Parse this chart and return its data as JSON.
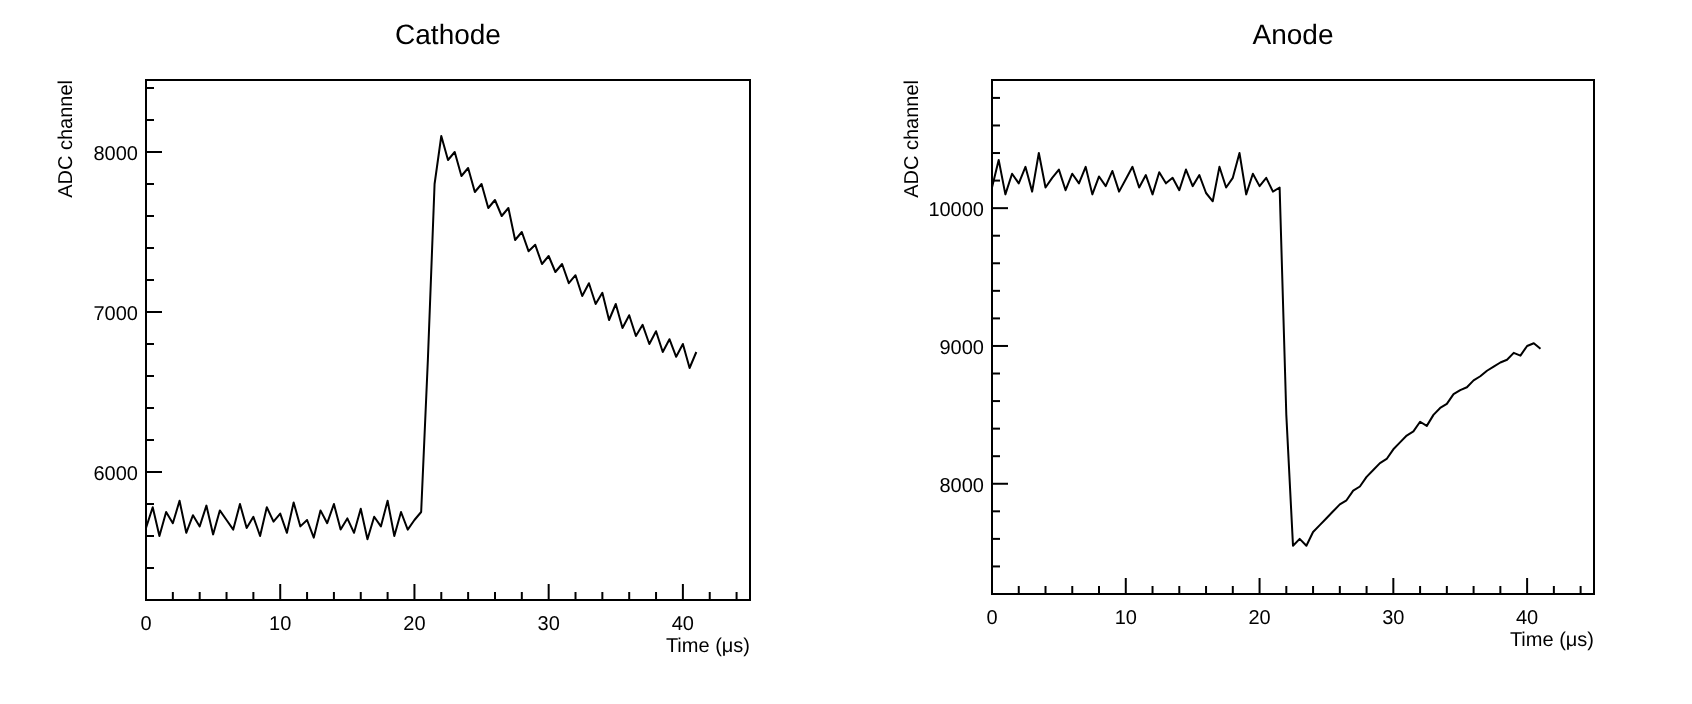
{
  "chart_data": [
    {
      "type": "line",
      "title": "Cathode",
      "xlabel": "Time (μs)",
      "ylabel": "ADC channel",
      "grid": false,
      "marker": "none",
      "line_style": "solid",
      "xlim": [
        0,
        45
      ],
      "ylim": [
        5200,
        8450
      ],
      "xticks": [
        0,
        {
          "value": 2,
          "label": null
        },
        {
          "value": 4,
          "label": null
        },
        {
          "value": 6,
          "label": null
        },
        {
          "value": 8,
          "label": null
        },
        10,
        {
          "value": 12,
          "label": null
        },
        {
          "value": 14,
          "label": null
        },
        {
          "value": 16,
          "label": null
        },
        {
          "value": 18,
          "label": null
        },
        20,
        {
          "value": 22,
          "label": null
        },
        {
          "value": 24,
          "label": null
        },
        {
          "value": 26,
          "label": null
        },
        {
          "value": 28,
          "label": null
        },
        30,
        {
          "value": 32,
          "label": null
        },
        {
          "value": 34,
          "label": null
        },
        {
          "value": 36,
          "label": null
        },
        {
          "value": 38,
          "label": null
        },
        40,
        {
          "value": 42,
          "label": null
        },
        {
          "value": 44,
          "label": null
        }
      ],
      "yticks": [
        {
          "value": 5400,
          "label": null
        },
        {
          "value": 5600,
          "label": null
        },
        {
          "value": 5800,
          "label": null
        },
        6000,
        {
          "value": 6200,
          "label": null
        },
        {
          "value": 6400,
          "label": null
        },
        {
          "value": 6600,
          "label": null
        },
        {
          "value": 6800,
          "label": null
        },
        7000,
        {
          "value": 7200,
          "label": null
        },
        {
          "value": 7400,
          "label": null
        },
        {
          "value": 7600,
          "label": null
        },
        {
          "value": 7800,
          "label": null
        },
        8000,
        {
          "value": 8200,
          "label": null
        },
        {
          "value": 8400,
          "label": null
        }
      ],
      "series": [
        {
          "color": "#000000",
          "x": [
            0,
            0.5,
            1,
            1.5,
            2,
            2.5,
            3,
            3.5,
            4,
            4.5,
            5,
            5.5,
            6,
            6.5,
            7,
            7.5,
            8,
            8.5,
            9,
            9.5,
            10,
            10.5,
            11,
            11.5,
            12,
            12.5,
            13,
            13.5,
            14,
            14.5,
            15,
            15.5,
            16,
            16.5,
            17,
            17.5,
            18,
            18.5,
            19,
            19.5,
            20,
            20.5,
            21,
            21.5,
            22,
            22.5,
            23,
            23.5,
            24,
            24.5,
            25,
            25.5,
            26,
            26.5,
            27,
            27.5,
            28,
            28.5,
            29,
            29.5,
            30,
            30.5,
            31,
            31.5,
            32,
            32.5,
            33,
            33.5,
            34,
            34.5,
            35,
            35.5,
            36,
            36.5,
            37,
            37.5,
            38,
            38.5,
            39,
            39.5,
            40,
            40.5,
            41
          ],
          "values": [
            5650,
            5780,
            5600,
            5750,
            5680,
            5820,
            5620,
            5730,
            5660,
            5790,
            5610,
            5760,
            5700,
            5640,
            5800,
            5650,
            5720,
            5600,
            5780,
            5690,
            5740,
            5620,
            5810,
            5660,
            5700,
            5590,
            5760,
            5680,
            5800,
            5640,
            5710,
            5620,
            5770,
            5580,
            5720,
            5660,
            5820,
            5600,
            5750,
            5640,
            5700,
            5750,
            6700,
            7800,
            8100,
            7950,
            8000,
            7850,
            7900,
            7750,
            7800,
            7650,
            7700,
            7600,
            7650,
            7450,
            7500,
            7380,
            7420,
            7300,
            7350,
            7250,
            7300,
            7180,
            7230,
            7100,
            7180,
            7050,
            7120,
            6950,
            7050,
            6900,
            6980,
            6850,
            6920,
            6800,
            6880,
            6750,
            6830,
            6720,
            6800,
            6650,
            6750
          ]
        }
      ]
    },
    {
      "type": "line",
      "title": "Anode",
      "xlabel": "Time (μs)",
      "ylabel": "ADC channel",
      "grid": false,
      "marker": "none",
      "line_style": "solid",
      "xlim": [
        0,
        45
      ],
      "ylim": [
        7200,
        10930
      ],
      "xticks": [
        0,
        {
          "value": 2,
          "label": null
        },
        {
          "value": 4,
          "label": null
        },
        {
          "value": 6,
          "label": null
        },
        {
          "value": 8,
          "label": null
        },
        10,
        {
          "value": 12,
          "label": null
        },
        {
          "value": 14,
          "label": null
        },
        {
          "value": 16,
          "label": null
        },
        {
          "value": 18,
          "label": null
        },
        20,
        {
          "value": 22,
          "label": null
        },
        {
          "value": 24,
          "label": null
        },
        {
          "value": 26,
          "label": null
        },
        {
          "value": 28,
          "label": null
        },
        30,
        {
          "value": 32,
          "label": null
        },
        {
          "value": 34,
          "label": null
        },
        {
          "value": 36,
          "label": null
        },
        {
          "value": 38,
          "label": null
        },
        40,
        {
          "value": 42,
          "label": null
        },
        {
          "value": 44,
          "label": null
        }
      ],
      "yticks": [
        {
          "value": 7400,
          "label": null
        },
        {
          "value": 7600,
          "label": null
        },
        {
          "value": 7800,
          "label": null
        },
        8000,
        {
          "value": 8200,
          "label": null
        },
        {
          "value": 8400,
          "label": null
        },
        {
          "value": 8600,
          "label": null
        },
        {
          "value": 8800,
          "label": null
        },
        9000,
        {
          "value": 9200,
          "label": null
        },
        {
          "value": 9400,
          "label": null
        },
        {
          "value": 9600,
          "label": null
        },
        {
          "value": 9800,
          "label": null
        },
        10000,
        {
          "value": 10200,
          "label": null
        },
        {
          "value": 10400,
          "label": null
        },
        {
          "value": 10600,
          "label": null
        },
        {
          "value": 10800,
          "label": null
        }
      ],
      "series": [
        {
          "color": "#000000",
          "x": [
            0,
            0.5,
            1,
            1.5,
            2,
            2.5,
            3,
            3.5,
            4,
            4.5,
            5,
            5.5,
            6,
            6.5,
            7,
            7.5,
            8,
            8.5,
            9,
            9.5,
            10,
            10.5,
            11,
            11.5,
            12,
            12.5,
            13,
            13.5,
            14,
            14.5,
            15,
            15.5,
            16,
            16.5,
            17,
            17.5,
            18,
            18.5,
            19,
            19.5,
            20,
            20.5,
            21,
            21.5,
            22,
            22.5,
            23,
            23.5,
            24,
            24.5,
            25,
            25.5,
            26,
            26.5,
            27,
            27.5,
            28,
            28.5,
            29,
            29.5,
            30,
            30.5,
            31,
            31.5,
            32,
            32.5,
            33,
            33.5,
            34,
            34.5,
            35,
            35.5,
            36,
            36.5,
            37,
            37.5,
            38,
            38.5,
            39,
            39.5,
            40,
            40.5,
            41
          ],
          "values": [
            10150,
            10350,
            10100,
            10250,
            10180,
            10300,
            10120,
            10400,
            10150,
            10220,
            10280,
            10130,
            10250,
            10180,
            10300,
            10100,
            10230,
            10160,
            10270,
            10120,
            10210,
            10300,
            10150,
            10240,
            10100,
            10260,
            10180,
            10220,
            10130,
            10280,
            10160,
            10240,
            10110,
            10050,
            10300,
            10150,
            10220,
            10400,
            10100,
            10250,
            10160,
            10220,
            10120,
            10150,
            8500,
            7550,
            7600,
            7550,
            7650,
            7700,
            7750,
            7800,
            7850,
            7880,
            7950,
            7980,
            8050,
            8100,
            8150,
            8180,
            8250,
            8300,
            8350,
            8380,
            8450,
            8420,
            8500,
            8550,
            8580,
            8650,
            8680,
            8700,
            8750,
            8780,
            8820,
            8850,
            8880,
            8900,
            8950,
            8930,
            9000,
            9020,
            8980
          ]
        }
      ]
    }
  ]
}
